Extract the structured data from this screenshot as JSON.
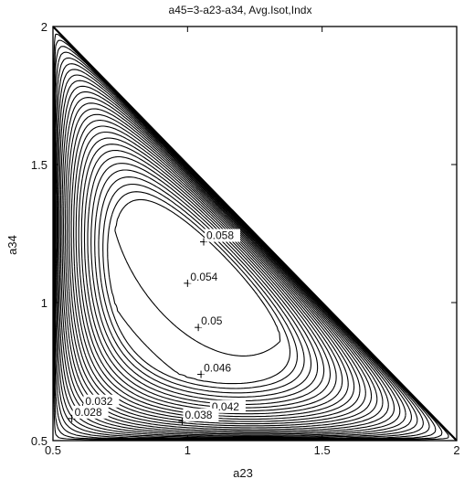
{
  "chart_data": {
    "type": "contour",
    "title": "a45=3-a23-a34, Avg.Isot,Indx",
    "xlabel": "a23",
    "ylabel": "a34",
    "xlim": [
      0.5,
      2.0
    ],
    "ylim": [
      0.5,
      2.0
    ],
    "x_ticks": [
      "0.5",
      "1",
      "1.5",
      "2"
    ],
    "y_ticks": [
      "0.5",
      "1",
      "1.5",
      "2"
    ],
    "constraint_line": {
      "x": [
        0.5,
        2.0
      ],
      "y": [
        2.0,
        0.5
      ]
    },
    "peak": {
      "a23": 1.06,
      "a34": 1.22,
      "value": 0.058
    },
    "contour_levels": [
      0.002,
      0.004,
      0.006,
      0.008,
      0.01,
      0.012,
      0.014,
      0.016,
      0.018,
      0.02,
      0.022,
      0.024,
      0.026,
      0.028,
      0.03,
      0.032,
      0.034,
      0.036,
      0.038,
      0.04,
      0.042,
      0.044,
      0.046,
      0.048,
      0.05,
      0.052,
      0.054,
      0.056,
      0.058
    ],
    "annotations": [
      {
        "text": "0.058",
        "a23": 1.06,
        "a34": 1.22
      },
      {
        "text": "0.054",
        "a23": 1.0,
        "a34": 1.07
      },
      {
        "text": "0.05",
        "a23": 1.04,
        "a34": 0.91
      },
      {
        "text": "0.046",
        "a23": 1.05,
        "a34": 0.74
      },
      {
        "text": "0.042",
        "a23": 1.08,
        "a34": 0.6
      },
      {
        "text": "0.038",
        "a23": 0.98,
        "a34": 0.57
      },
      {
        "text": "0.032",
        "a23": 0.61,
        "a34": 0.62
      },
      {
        "text": "0.028",
        "a23": 0.57,
        "a34": 0.58
      }
    ],
    "grid": false,
    "legend": "none",
    "line_color": "#000000"
  }
}
